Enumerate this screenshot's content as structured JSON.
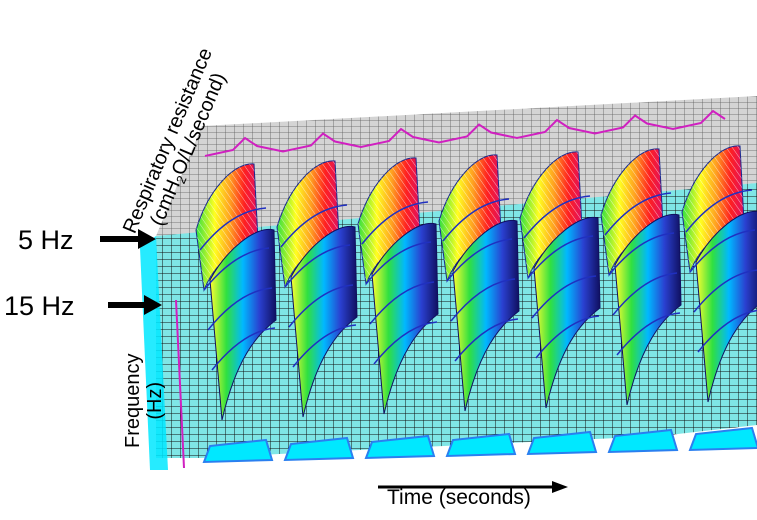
{
  "labels": {
    "z_axis_line1": "Respiratory resistance",
    "z_axis_line2_pre": "(cmH",
    "z_axis_line2_sub": "2",
    "z_axis_line2_post": "O/L/second)",
    "freq_axis_line1": "Frequency",
    "freq_axis_line2": "(Hz)",
    "time_axis": "Time (seconds)",
    "marker_5hz": "5 Hz",
    "marker_15hz": "15 Hz"
  },
  "chart_data": {
    "type": "surface-3d",
    "title": "",
    "xlabel": "Time (seconds)",
    "ylabel": "Frequency (Hz)",
    "zlabel": "Respiratory resistance (cmH2O/L/second)",
    "frequency_markers": [
      "5 Hz",
      "15 Hz"
    ],
    "breath_peaks": 7,
    "palette": [
      "#2a2aa0",
      "#2a80ff",
      "#00d8ff",
      "#30e040",
      "#ffff20",
      "#ffa020",
      "#ff2020"
    ],
    "colors": {
      "floor": "#7fe6e6",
      "floor_grid": "#111111",
      "back_wall": "#cfcfcf",
      "back_wall_grid": "#555555",
      "top_trace": "#d020c0",
      "ridge_line": "#2030c0",
      "front_edge": "#2a7ff0",
      "cyan_base": "#00e8ff"
    }
  }
}
